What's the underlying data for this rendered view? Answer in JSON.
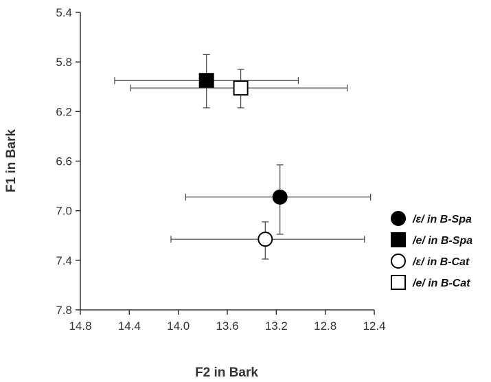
{
  "chart_data": {
    "type": "scatter",
    "xlabel": "F2 in Bark",
    "ylabel": "F1 in Bark",
    "xlim": [
      14.8,
      12.4
    ],
    "ylim": [
      5.4,
      7.8
    ],
    "x_reversed": true,
    "y_reversed": true,
    "x_ticks": [
      "14.8",
      "14.4",
      "14.0",
      "13.6",
      "13.2",
      "12.8",
      "12.4"
    ],
    "y_ticks": [
      "5.4",
      "5.8",
      "6.2",
      "6.6",
      "7.0",
      "7.4",
      "7.8"
    ],
    "grid": false,
    "legend_position": "right",
    "series": [
      {
        "name": "/ɛ/ in B-Spa",
        "marker": "filled-circle",
        "x": 13.17,
        "y": 6.89,
        "x_err": [
          13.94,
          12.43
        ],
        "y_err": [
          6.63,
          7.19
        ]
      },
      {
        "name": "/e/ in B-Spa",
        "marker": "filled-square",
        "x": 13.77,
        "y": 5.95,
        "x_err": [
          14.52,
          13.02
        ],
        "y_err": [
          5.74,
          6.17
        ]
      },
      {
        "name": "/ɛ/ in B-Cat",
        "marker": "open-circle",
        "x": 13.29,
        "y": 7.23,
        "x_err": [
          14.06,
          12.48
        ],
        "y_err": [
          7.09,
          7.39
        ]
      },
      {
        "name": "/e/ in B-Cat",
        "marker": "open-square",
        "x": 13.49,
        "y": 6.01,
        "x_err": [
          14.39,
          12.62
        ],
        "y_err": [
          5.86,
          6.17
        ]
      }
    ]
  }
}
